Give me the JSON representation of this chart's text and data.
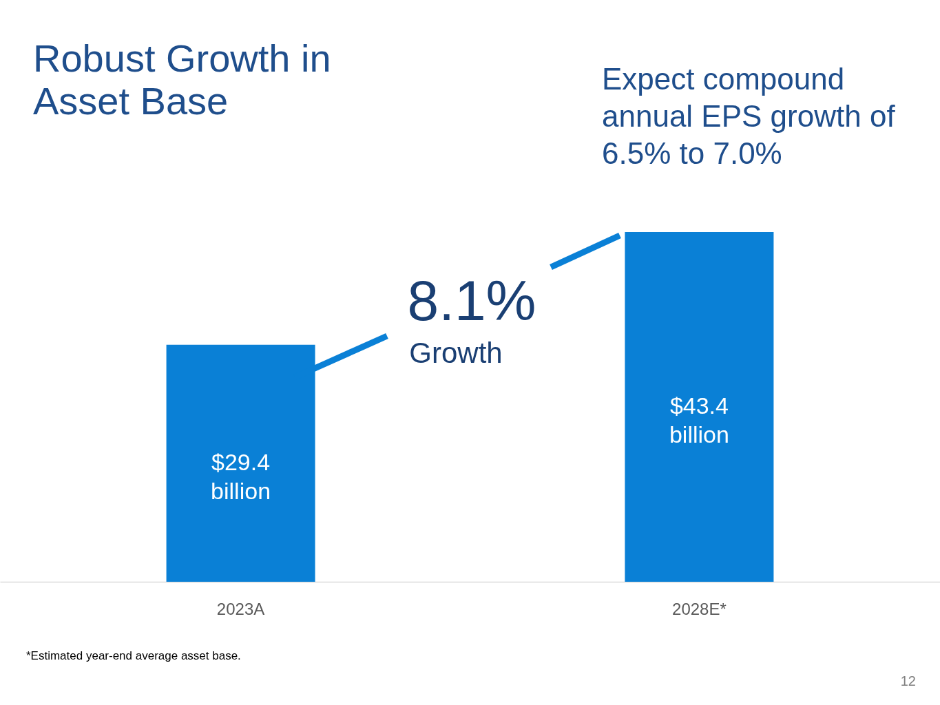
{
  "chart_data": {
    "type": "bar",
    "title": "Robust Growth in Asset Base",
    "categories": [
      "2023A",
      "2028E*"
    ],
    "values": [
      29.4,
      43.4
    ],
    "value_labels": [
      "$29.4 billion",
      "$43.4 billion"
    ],
    "color": "#0a80d6",
    "annotations": [
      "Expect compound annual EPS growth of 6.5% to 7.0%",
      "8.1%",
      "Growth",
      "*Estimated year-end average asset base.",
      "12"
    ]
  }
}
